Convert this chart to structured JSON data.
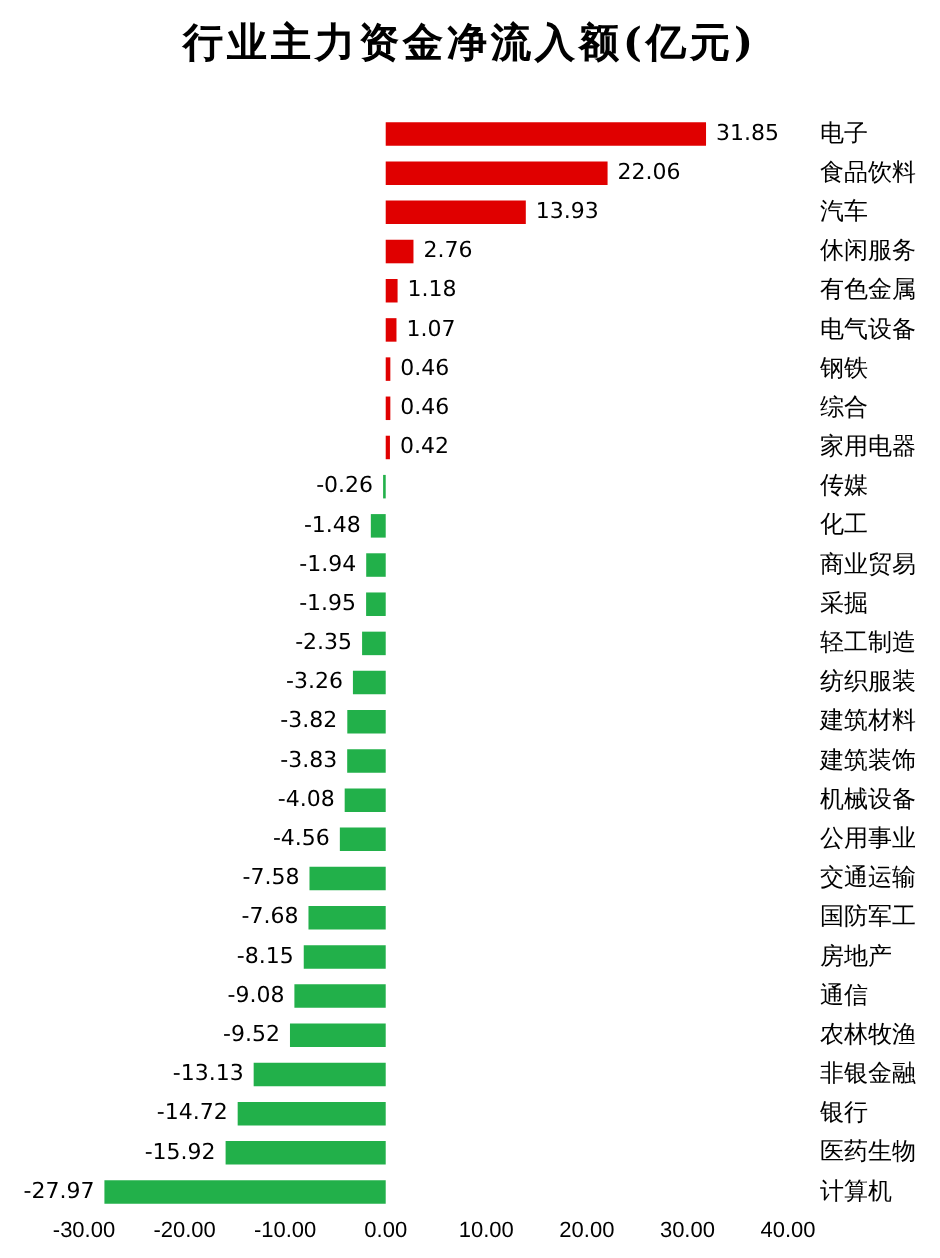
{
  "chart_data": {
    "type": "bar",
    "orientation": "horizontal",
    "title": "行业主力资金净流入额(亿元)",
    "categories": [
      "电子",
      "食品饮料",
      "汽车",
      "休闲服务",
      "有色金属",
      "电气设备",
      "钢铁",
      "综合",
      "家用电器",
      "传媒",
      "化工",
      "商业贸易",
      "采掘",
      "轻工制造",
      "纺织服装",
      "建筑材料",
      "建筑装饰",
      "机械设备",
      "公用事业",
      "交通运输",
      "国防军工",
      "房地产",
      "通信",
      "农林牧渔",
      "非银金融",
      "银行",
      "医药生物",
      "计算机"
    ],
    "values": [
      31.85,
      22.06,
      13.93,
      2.76,
      1.18,
      1.07,
      0.46,
      0.46,
      0.42,
      -0.26,
      -1.48,
      -1.94,
      -1.95,
      -2.35,
      -3.26,
      -3.82,
      -3.83,
      -4.08,
      -4.56,
      -7.58,
      -7.68,
      -8.15,
      -9.08,
      -9.52,
      -13.13,
      -14.72,
      -15.92,
      -27.97
    ],
    "colors": [
      "#e00000",
      "#e00000",
      "#e00000",
      "#e00000",
      "#e00000",
      "#e00000",
      "#e00000",
      "#e00000",
      "#e00000",
      "#22b04a",
      "#22b04a",
      "#22b04a",
      "#22b04a",
      "#22b04a",
      "#22b04a",
      "#22b04a",
      "#22b04a",
      "#22b04a",
      "#22b04a",
      "#22b04a",
      "#22b04a",
      "#22b04a",
      "#22b04a",
      "#22b04a",
      "#22b04a",
      "#22b04a",
      "#22b04a",
      "#22b04a"
    ],
    "xlim": [
      -30,
      40
    ],
    "xticks": [
      {
        "value": -30,
        "label": "-30.00"
      },
      {
        "value": -20,
        "label": "-20.00"
      },
      {
        "value": -10,
        "label": "-10.00"
      },
      {
        "value": 0,
        "label": "0.00"
      },
      {
        "value": 10,
        "label": "10.00"
      },
      {
        "value": 20,
        "label": "20.00"
      },
      {
        "value": 30,
        "label": "30.00"
      },
      {
        "value": 40,
        "label": "40.00"
      }
    ],
    "data_labels": true,
    "grid": false,
    "legend": false
  }
}
